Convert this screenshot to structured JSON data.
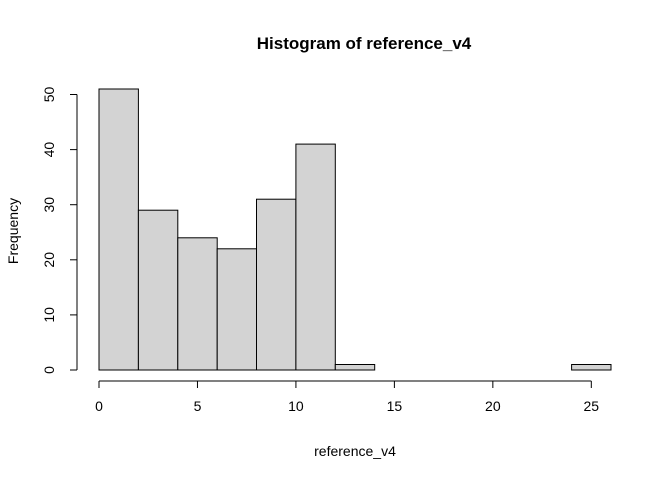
{
  "chart_data": {
    "type": "bar",
    "title": "Histogram of reference_v4",
    "xlabel": "reference_v4",
    "ylabel": "Frequency",
    "bins": [
      {
        "x0": 0,
        "x1": 2,
        "count": 51
      },
      {
        "x0": 2,
        "x1": 4,
        "count": 29
      },
      {
        "x0": 4,
        "x1": 6,
        "count": 24
      },
      {
        "x0": 6,
        "x1": 8,
        "count": 22
      },
      {
        "x0": 8,
        "x1": 10,
        "count": 31
      },
      {
        "x0": 10,
        "x1": 12,
        "count": 41
      },
      {
        "x0": 12,
        "x1": 14,
        "count": 1
      },
      {
        "x0": 14,
        "x1": 16,
        "count": 0
      },
      {
        "x0": 16,
        "x1": 18,
        "count": 0
      },
      {
        "x0": 18,
        "x1": 20,
        "count": 0
      },
      {
        "x0": 20,
        "x1": 22,
        "count": 0
      },
      {
        "x0": 22,
        "x1": 24,
        "count": 0
      },
      {
        "x0": 24,
        "x1": 26,
        "count": 1
      }
    ],
    "xlim": [
      0,
      26
    ],
    "ylim": [
      0,
      51
    ],
    "x_ticks": [
      0,
      5,
      10,
      15,
      20,
      25
    ],
    "y_ticks": [
      0,
      10,
      20,
      30,
      40,
      50
    ],
    "bar_fill": "#d3d3d3",
    "bar_stroke": "#000000",
    "grid": false,
    "legend": "none"
  }
}
